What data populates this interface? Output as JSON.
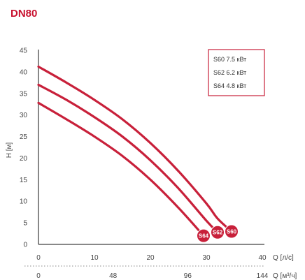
{
  "chart_data": {
    "type": "line",
    "title": "DN80",
    "xlabel": "Q [л/с]",
    "ylabel": "H [м]",
    "secondary_xlabel": "Q [м³/ч]",
    "xlim": [
      0,
      40
    ],
    "ylim": [
      0,
      45
    ],
    "x_ticks": [
      0,
      10,
      20,
      30,
      40
    ],
    "y_ticks": [
      0,
      5,
      10,
      15,
      20,
      25,
      30,
      35,
      40,
      45
    ],
    "secondary_x_ticks": [
      "0",
      "48",
      "96",
      "144"
    ],
    "series": [
      {
        "name": "S60 7.5 кВт",
        "marker": "S60",
        "x": [
          0,
          5,
          10,
          15,
          20,
          25,
          30,
          32,
          34.5
        ],
        "y": [
          41.2,
          37.5,
          33.5,
          29.0,
          23.5,
          17.0,
          9.5,
          6.0,
          3.0
        ]
      },
      {
        "name": "S62 6.2 кВт",
        "marker": "S62",
        "x": [
          0,
          5,
          10,
          15,
          20,
          25,
          30,
          32
        ],
        "y": [
          37.0,
          33.5,
          29.5,
          25.0,
          19.5,
          13.0,
          5.5,
          2.8
        ]
      },
      {
        "name": "S64 4.8 кВт",
        "marker": "S64",
        "x": [
          0,
          5,
          10,
          15,
          20,
          25,
          29.5
        ],
        "y": [
          32.8,
          29.0,
          25.0,
          20.5,
          15.0,
          8.5,
          2.0
        ]
      }
    ],
    "legend_position": "top-right",
    "grid": false,
    "colors": {
      "title": "#c8102e",
      "curve": "#c8203a",
      "axis": "#111111",
      "text": "#444444"
    }
  }
}
